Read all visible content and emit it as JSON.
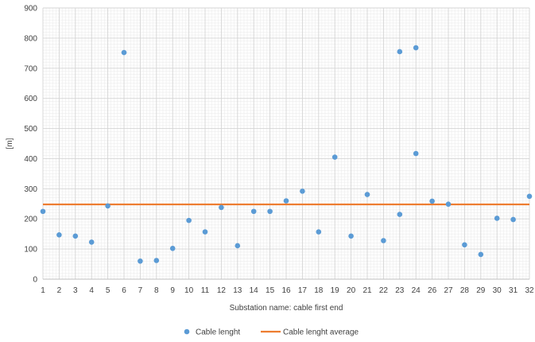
{
  "chart_data": {
    "type": "scatter",
    "xlabel": "Substation name: cable first end",
    "ylabel": "[m]",
    "ylim": [
      0,
      900
    ],
    "y_ticks": [
      "0",
      "100",
      "200",
      "300",
      "400",
      "500",
      "600",
      "700",
      "800",
      "900"
    ],
    "categories": [
      "1",
      "2",
      "3",
      "4",
      "5",
      "6",
      "7",
      "8",
      "9",
      "10",
      "11",
      "12",
      "13",
      "14",
      "15",
      "16",
      "17",
      "18",
      "19",
      "20",
      "21",
      "22",
      "23",
      "24",
      "26",
      "27",
      "28",
      "29",
      "30",
      "31",
      "32"
    ],
    "grid": true,
    "legend_position": "bottom",
    "series": [
      {
        "name": "Cable lenght",
        "kind": "scatter",
        "color": "#5B9BD5",
        "points": [
          {
            "x": "1",
            "y": 225
          },
          {
            "x": "2",
            "y": 147
          },
          {
            "x": "3",
            "y": 143
          },
          {
            "x": "4",
            "y": 123
          },
          {
            "x": "5",
            "y": 243
          },
          {
            "x": "6",
            "y": 752
          },
          {
            "x": "7",
            "y": 60
          },
          {
            "x": "8",
            "y": 62
          },
          {
            "x": "9",
            "y": 102
          },
          {
            "x": "10",
            "y": 195
          },
          {
            "x": "11",
            "y": 157
          },
          {
            "x": "12",
            "y": 238
          },
          {
            "x": "13",
            "y": 111
          },
          {
            "x": "14",
            "y": 225
          },
          {
            "x": "15",
            "y": 225
          },
          {
            "x": "16",
            "y": 260
          },
          {
            "x": "17",
            "y": 292
          },
          {
            "x": "18",
            "y": 157
          },
          {
            "x": "19",
            "y": 405
          },
          {
            "x": "20",
            "y": 143
          },
          {
            "x": "21",
            "y": 281
          },
          {
            "x": "22",
            "y": 128
          },
          {
            "x": "23",
            "y": 755
          },
          {
            "x": "23",
            "y": 215
          },
          {
            "x": "24",
            "y": 768
          },
          {
            "x": "24",
            "y": 417
          },
          {
            "x": "26",
            "y": 259
          },
          {
            "x": "27",
            "y": 249
          },
          {
            "x": "28",
            "y": 114
          },
          {
            "x": "29",
            "y": 82
          },
          {
            "x": "30",
            "y": 202
          },
          {
            "x": "31",
            "y": 198
          },
          {
            "x": "32",
            "y": 275
          }
        ]
      },
      {
        "name": "Cable lenght average",
        "kind": "line",
        "color": "#ED7D31",
        "value": 248
      }
    ]
  }
}
